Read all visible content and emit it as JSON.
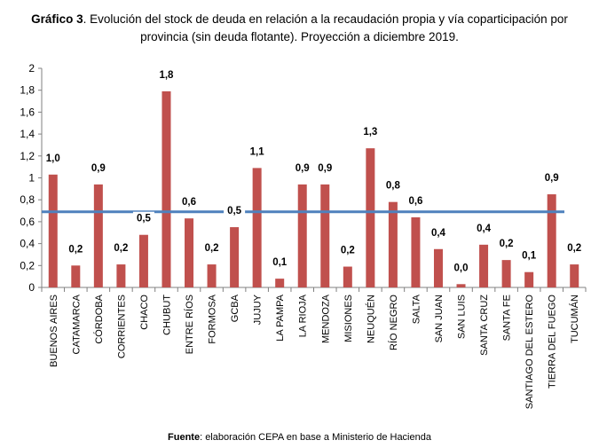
{
  "header": {
    "title_bold": "Gráfico 3",
    "title_line1": ". Evolución del stock de deuda en relación a la recaudación propia y vía coparticipación por",
    "title_line2": "provincia (sin deuda flotante). Proyección a diciembre 2019."
  },
  "footer": {
    "source_bold": "Fuente",
    "source_text": ": elaboración CEPA en base a Ministerio de Hacienda"
  },
  "chart_data": {
    "type": "bar",
    "categories": [
      "BUENOS AIRES",
      "CATAMARCA",
      "CÓRDOBA",
      "CORRIENTES",
      "CHACO",
      "CHUBUT",
      "ENTRE RÍOS",
      "FORMOSA",
      "GCBA",
      "JUJUY",
      "LA PAMPA",
      "LA RIOJA",
      "MENDOZA",
      "MISIONES",
      "NEUQUÉN",
      "RÍO NEGRO",
      "SALTA",
      "SAN JUAN",
      "SAN LUIS",
      "SANTA CRUZ",
      "SANTA FE",
      "SANTIAGO DEL ESTERO",
      "TIERRA DEL FUEGO",
      "TUCUMÁN"
    ],
    "values": [
      1.03,
      0.2,
      0.94,
      0.21,
      0.48,
      1.79,
      0.63,
      0.21,
      0.55,
      1.09,
      0.08,
      0.94,
      0.94,
      0.19,
      1.27,
      0.78,
      0.64,
      0.35,
      0.03,
      0.39,
      0.25,
      0.14,
      0.85,
      0.21
    ],
    "data_labels": [
      "1,0",
      "0,2",
      "0,9",
      "0,2",
      "0,5",
      "1,8",
      "0,6",
      "0,2",
      "0,5",
      "1,1",
      "0,1",
      "0,9",
      "0,9",
      "0,2",
      "1,3",
      "0,8",
      "0,6",
      "0,4",
      "0,0",
      "0,4",
      "0,2",
      "0,1",
      "0,9",
      "0,2"
    ],
    "reference_line": 0.69,
    "ylim": [
      0,
      2
    ],
    "yticks": [
      0,
      0.2,
      0.4,
      0.6,
      0.8,
      1,
      1.2,
      1.4,
      1.6,
      1.8,
      2
    ],
    "ytick_labels": [
      "0",
      "0,2",
      "0,4",
      "0,6",
      "0,8",
      "1",
      "1,2",
      "1,4",
      "1,6",
      "1,8",
      "2"
    ],
    "title": "",
    "xlabel": "",
    "ylabel": "",
    "grid": false,
    "colors": {
      "bar": "#c0504d",
      "reference_line": "#4f81bd",
      "axis": "#808080"
    }
  }
}
